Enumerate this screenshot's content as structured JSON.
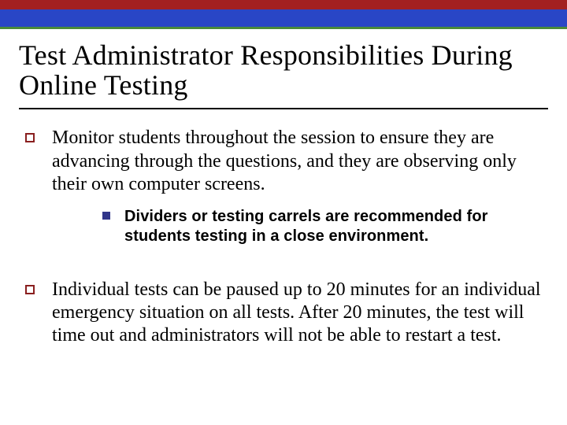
{
  "top_bar": {
    "colors": [
      "#a32020",
      "#2946c6",
      "#4a8a3a"
    ],
    "heights": [
      12,
      22,
      3
    ]
  },
  "title": "Test Administrator Responsibilities During Online Testing",
  "bullets": [
    {
      "text": "Monitor students throughout the session to ensure they are advancing through the questions, and they are observing only their own computer screens.",
      "sub": [
        {
          "text": "Dividers or testing carrels are recommended for students testing in a close environment."
        }
      ]
    },
    {
      "text": "Individual tests can be paused up to 20 minutes for an individual emergency situation on all tests. After 20 minutes, the test will time out and administrators will not be able to restart a test.",
      "sub": []
    }
  ],
  "style": {
    "title_fontsize": 36,
    "body_fontsize": 24,
    "sub_fontsize": 20,
    "square_bullet_color": "#8a1f1f",
    "filled_bullet_color": "#31368a",
    "background": "#ffffff",
    "text_color": "#000000"
  }
}
